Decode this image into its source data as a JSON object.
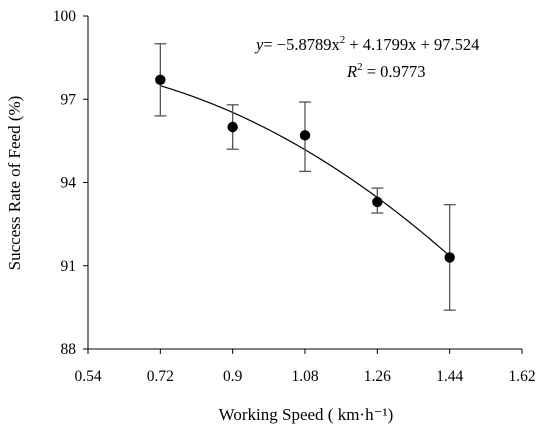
{
  "chart_data": {
    "type": "scatter",
    "title": "",
    "xlabel": "Working Speed ( km·h⁻¹)",
    "ylabel": "Success Rate of Feed (%)",
    "xlim": [
      0.54,
      1.62
    ],
    "ylim": [
      88,
      100
    ],
    "xticks": [
      "0.54",
      "0.72",
      "0.9",
      "1.08",
      "1.26",
      "1.44",
      "1.62"
    ],
    "yticks": [
      "88",
      "91",
      "94",
      "97",
      "100"
    ],
    "grid": false,
    "legend": "none",
    "series": [
      {
        "x": [
          0.72,
          0.9,
          1.08,
          1.26,
          1.44
        ],
        "y": [
          97.7,
          96.0,
          95.7,
          93.3,
          91.3
        ],
        "error_upper": [
          99.0,
          96.8,
          96.9,
          93.8,
          93.2
        ],
        "error_lower": [
          96.4,
          95.2,
          94.4,
          92.9,
          89.4
        ]
      }
    ],
    "trendline": {
      "type": "polynomial",
      "coefficients": {
        "a": -5.8789,
        "b": 4.1799,
        "c": 97.524
      }
    },
    "annotations": {
      "equation_prefix": "y",
      "equation_body": "= −5.8789x",
      "equation_exp": "2",
      "equation_rest": " + 4.1799x + 97.524",
      "r2_label": "R",
      "r2_exp": "2",
      "r2_value": " = 0.9773"
    }
  }
}
